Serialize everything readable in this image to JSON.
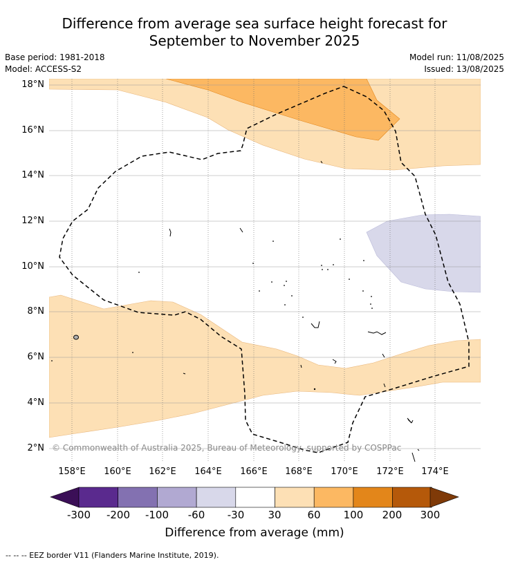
{
  "title_line1": "Difference from average sea surface height forecast for",
  "title_line2": "September to November 2025",
  "base_period": "Base period: 1981-2018",
  "model": "Model: ACCESS-S2",
  "model_run": "Model run: 11/08/2025",
  "issued": "Issued: 13/08/2025",
  "copyright": "© Commonwealth of Australia 2025, Bureau of Meteorology, supported by COSPPac",
  "lat_labels": [
    "18°N",
    "16°N",
    "14°N",
    "12°N",
    "10°N",
    "8°N",
    "6°N",
    "4°N",
    "2°N"
  ],
  "lon_labels": [
    "158°E",
    "160°E",
    "162°E",
    "164°E",
    "166°E",
    "168°E",
    "170°E",
    "172°E",
    "174°E"
  ],
  "colorbar": {
    "title": "Difference from average (mm)",
    "tick_labels": [
      "-300",
      "-200",
      "-100",
      "-60",
      "-30",
      "30",
      "60",
      "100",
      "200",
      "300"
    ],
    "colors": [
      "#3b0f57",
      "#5a2a8e",
      "#8371b1",
      "#b1a9d2",
      "#d8d8ea",
      "#ffffff",
      "#fde0b5",
      "#fcb862",
      "#e3861a",
      "#b5590a",
      "#7f3a08"
    ]
  },
  "eez_note": "--  --  -- EEZ border V11 (Flanders Marine Institute, 2019)."
}
